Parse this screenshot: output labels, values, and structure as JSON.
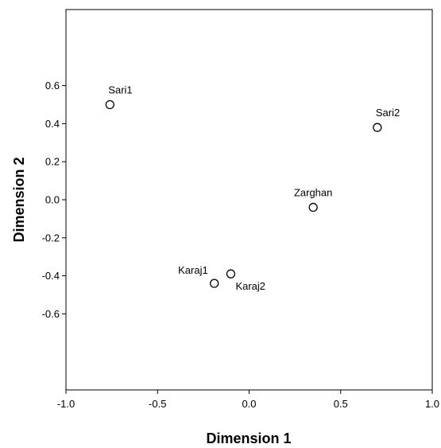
{
  "chart_data": {
    "type": "scatter",
    "title": "",
    "xlabel": "Dimension 1",
    "ylabel": "Dimension 2",
    "xlim": [
      -1.0,
      1.0
    ],
    "ylim": [
      -1.0,
      1.0
    ],
    "x_ticks": [
      "-1.0",
      "-0.5",
      "0.0",
      "0.5",
      "1.0"
    ],
    "x_tick_values": [
      -1.0,
      -0.5,
      0.0,
      0.5,
      1.0
    ],
    "y_ticks": [
      "0.6",
      "0.4",
      "0.2",
      "0.0",
      "-0.2",
      "-0.4",
      "-0.6"
    ],
    "y_tick_values": [
      0.6,
      0.4,
      0.2,
      0.0,
      -0.2,
      -0.4,
      -0.6
    ],
    "grid": false,
    "legend": "none",
    "marker": "open-circle",
    "points": [
      {
        "label": "Sari1",
        "x": -0.76,
        "y": 0.5
      },
      {
        "label": "Sari2",
        "x": 0.7,
        "y": 0.38
      },
      {
        "label": "Zarghan",
        "x": 0.35,
        "y": -0.04
      },
      {
        "label": "Karaj1",
        "x": -0.19,
        "y": -0.44
      },
      {
        "label": "Karaj2",
        "x": -0.1,
        "y": -0.39
      }
    ]
  }
}
